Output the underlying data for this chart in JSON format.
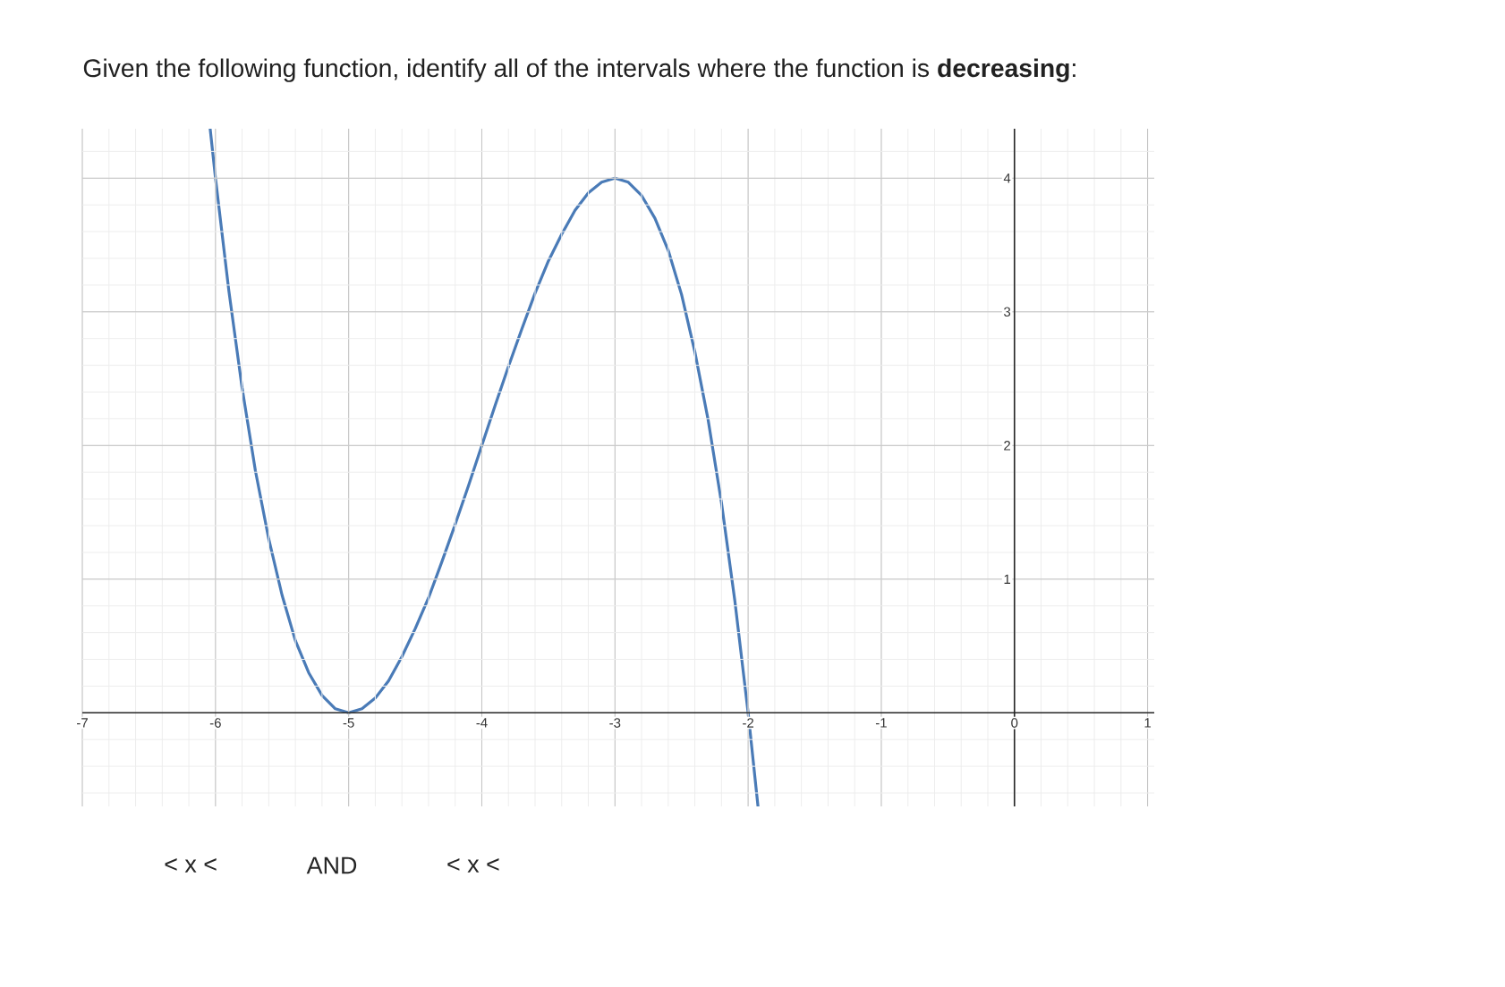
{
  "chart_data": {
    "type": "line",
    "title": "Given the following function, identify all of the intervals where the function is **decreasing**:",
    "x": [
      -6.04,
      -6.0,
      -5.9,
      -5.8,
      -5.7,
      -5.6,
      -5.5,
      -5.4,
      -5.3,
      -5.2,
      -5.1,
      -5.0,
      -4.9,
      -4.8,
      -4.7,
      -4.6,
      -4.5,
      -4.4,
      -4.3,
      -4.2,
      -4.1,
      -4.0,
      -3.9,
      -3.8,
      -3.7,
      -3.6,
      -3.5,
      -3.4,
      -3.3,
      -3.2,
      -3.1,
      -3.0,
      -2.9,
      -2.8,
      -2.7,
      -2.6,
      -2.5,
      -2.4,
      -2.3,
      -2.2,
      -2.1,
      -2.0,
      -1.926
    ],
    "series": [
      {
        "color": "#4a7bb7",
        "values": [
          4.37,
          4.0,
          3.16,
          2.43,
          1.81,
          1.3,
          0.88,
          0.54,
          0.3,
          0.13,
          0.03,
          0.0,
          0.03,
          0.11,
          0.24,
          0.42,
          0.63,
          0.86,
          1.13,
          1.41,
          1.7,
          2.0,
          2.3,
          2.59,
          2.87,
          3.14,
          3.38,
          3.58,
          3.76,
          3.89,
          3.97,
          4.0,
          3.97,
          3.87,
          3.7,
          3.46,
          3.13,
          2.7,
          2.19,
          1.57,
          0.84,
          0.0,
          -0.7
        ]
      }
    ],
    "xlim": [
      -7,
      1.05
    ],
    "ylim": [
      -0.7,
      4.37
    ],
    "xticks": [
      -7,
      -6,
      -5,
      -4,
      -3,
      -2,
      -1,
      0,
      1
    ],
    "yticks": [
      1,
      2,
      3,
      4
    ],
    "grid": true,
    "marker": "none",
    "line_style": "solid",
    "annotations": [
      "< x <",
      "AND",
      "< x <"
    ]
  }
}
